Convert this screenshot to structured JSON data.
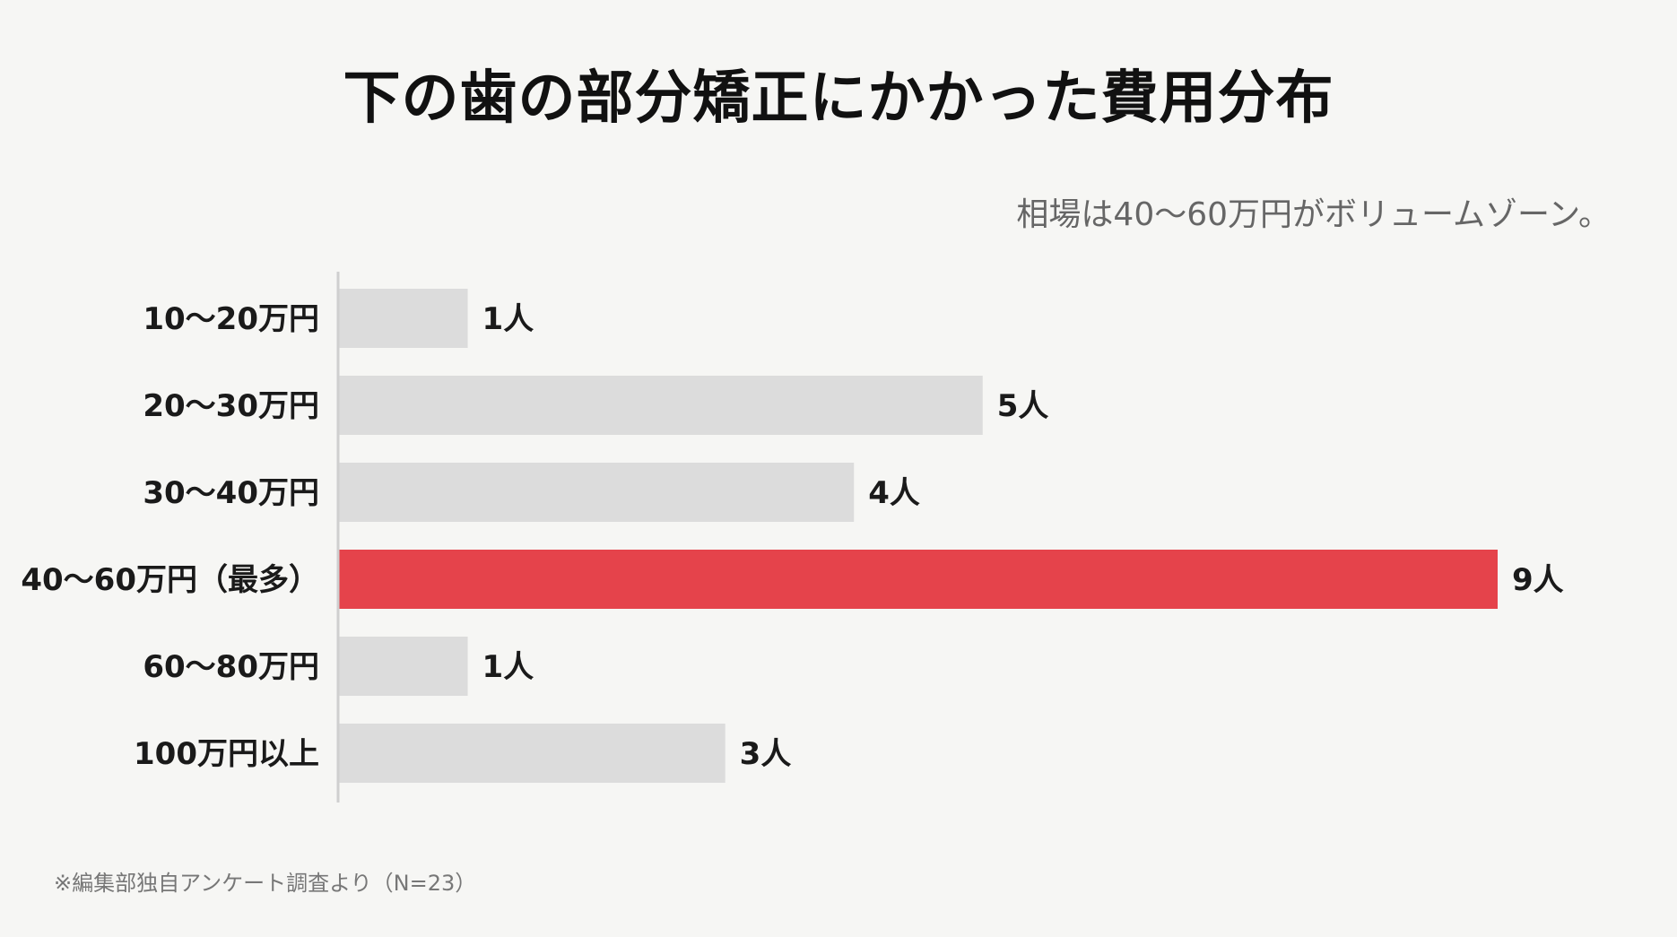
{
  "title": "下の歯の部分矯正にかかった費用分布",
  "subtitle": "相場は40〜60万円がボリュームゾーン。",
  "note": "※編集部独自アンケート調査より（N=23）",
  "colors": {
    "bar_default": "#dcdcdc",
    "bar_highlight": "#e5434b",
    "axis": "#cfcfcf",
    "background": "#f6f6f4"
  },
  "chart_data": {
    "type": "bar",
    "orientation": "horizontal",
    "categories": [
      "10〜20万円",
      "20〜30万円",
      "30〜40万円",
      "40〜60万円（最多）",
      "60〜80万円",
      "100万円以上"
    ],
    "values": [
      1,
      5,
      4,
      9,
      1,
      3
    ],
    "value_labels": [
      "1人",
      "5人",
      "4人",
      "9人",
      "1人",
      "3人"
    ],
    "highlight_index": 3,
    "xlim": [
      0,
      9
    ],
    "grid": false,
    "legend": "none"
  }
}
